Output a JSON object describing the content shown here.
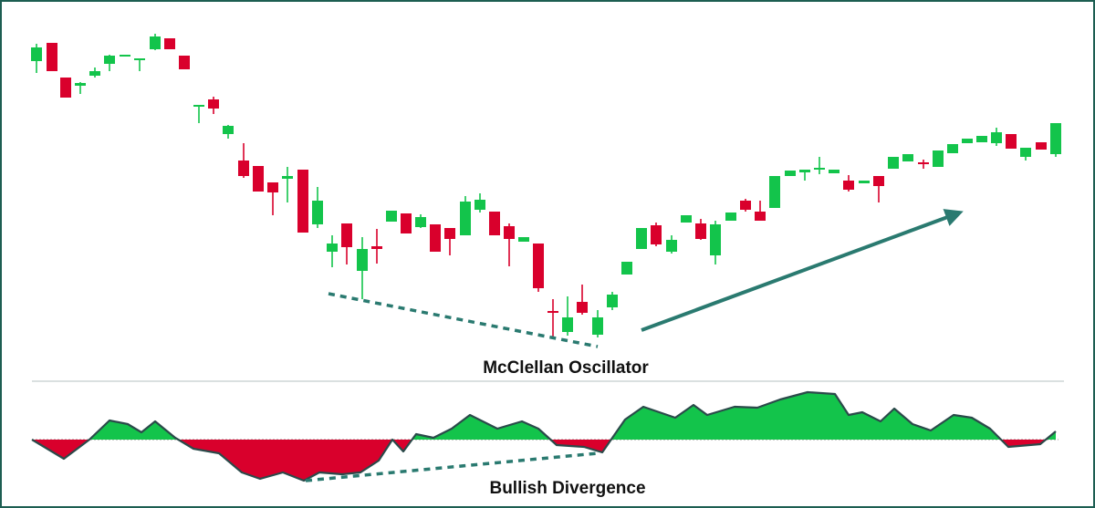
{
  "chart_data": [
    {
      "type": "candlestick",
      "x": [
        40,
        57,
        72,
        88,
        104,
        120,
        137,
        153,
        170,
        186,
        202,
        218,
        234,
        250,
        267,
        283,
        299,
        315,
        332,
        348,
        364,
        380,
        397,
        413,
        429,
        445,
        461,
        477,
        493,
        510,
        526,
        542,
        558,
        574,
        590,
        606,
        622,
        638,
        655,
        671,
        687,
        703,
        719,
        736,
        752,
        768,
        784,
        801,
        817,
        833,
        849,
        866,
        882,
        898,
        914,
        930,
        947,
        963,
        979,
        995,
        1012,
        1028,
        1044,
        1060,
        1076,
        1092,
        1108,
        1124,
        1141,
        1157
      ],
      "open": [
        333,
        353,
        315,
        306,
        317,
        330,
        338,
        334,
        346,
        358,
        339,
        283,
        291,
        253,
        224,
        218,
        200,
        204,
        214,
        154,
        124,
        155,
        103,
        130,
        157,
        166,
        151,
        154,
        150,
        142,
        170,
        168,
        152,
        135,
        133,
        59,
        36,
        69,
        33,
        63,
        99,
        127,
        153,
        124,
        156,
        155,
        120,
        158,
        180,
        168,
        172,
        207,
        211,
        214,
        210,
        202,
        199,
        207,
        215,
        223,
        222,
        217,
        232,
        243,
        244,
        243,
        253,
        228,
        244,
        231
      ],
      "high": [
        352,
        353,
        315,
        310,
        326,
        340,
        340,
        336,
        363,
        358,
        339,
        285,
        294,
        263,
        243,
        218,
        200,
        217,
        214,
        195,
        142,
        155,
        140,
        149,
        169,
        166,
        165,
        154,
        150,
        185,
        188,
        168,
        155,
        140,
        133,
        72,
        75,
        88,
        60,
        80,
        113,
        150,
        156,
        142,
        164,
        160,
        158,
        167,
        182,
        180,
        207,
        213,
        214,
        228,
        214,
        208,
        202,
        207,
        228,
        231,
        225,
        235,
        242,
        248,
        251,
        260,
        253,
        238,
        244,
        265
      ],
      "low": [
        320,
        322,
        293,
        297,
        315,
        322,
        338,
        322,
        345,
        346,
        324,
        265,
        275,
        248,
        205,
        190,
        164,
        178,
        145,
        150,
        107,
        110,
        72,
        111,
        157,
        144,
        150,
        124,
        120,
        142,
        167,
        142,
        108,
        135,
        80,
        30,
        32,
        55,
        30,
        60,
        99,
        127,
        130,
        122,
        156,
        137,
        110,
        158,
        168,
        158,
        172,
        207,
        202,
        209,
        210,
        190,
        199,
        178,
        215,
        223,
        215,
        217,
        232,
        243,
        244,
        240,
        237,
        224,
        236,
        228
      ],
      "close": [
        348,
        322,
        293,
        309,
        322,
        339,
        340,
        336,
        360,
        346,
        324,
        285,
        281,
        262,
        207,
        190,
        189,
        207,
        145,
        180,
        133,
        129,
        127,
        127,
        169,
        144,
        162,
        124,
        138,
        179,
        181,
        142,
        138,
        140,
        84,
        57,
        52,
        57,
        52,
        77,
        113,
        150,
        132,
        137,
        164,
        138,
        154,
        167,
        170,
        158,
        207,
        213,
        214,
        216,
        214,
        192,
        202,
        196,
        228,
        231,
        220,
        235,
        242,
        248,
        251,
        255,
        237,
        238,
        236,
        265
      ],
      "up_color": "#13c44b",
      "down_color": "#d9002c",
      "xlim": [
        0,
        1200
      ],
      "ylim": [
        20,
        370
      ]
    },
    {
      "type": "area",
      "title": "McClellan Oscillator",
      "annotation": "Bullish Divergence",
      "x": [
        35,
        70,
        98,
        120,
        140,
        155,
        170,
        192,
        212,
        240,
        265,
        285,
        310,
        333,
        350,
        375,
        395,
        415,
        430,
        442,
        456,
        475,
        495,
        515,
        545,
        572,
        590,
        610,
        640,
        660,
        685,
        705,
        740,
        760,
        775,
        805,
        830,
        855,
        885,
        915,
        930,
        945,
        965,
        980,
        1000,
        1020,
        1045,
        1065,
        1085,
        1105,
        1140,
        1157
      ],
      "values": [
        0,
        -21,
        0,
        21,
        17,
        8,
        20,
        2,
        -10,
        -15,
        -36,
        -43,
        -36,
        -45,
        -36,
        -38,
        -36,
        -23,
        0,
        -13,
        6,
        2,
        12,
        27,
        12,
        20,
        12,
        -6,
        -8,
        -14,
        22,
        36,
        24,
        38,
        27,
        36,
        35,
        44,
        52,
        50,
        27,
        30,
        20,
        34,
        17,
        10,
        27,
        24,
        12,
        -8,
        -5,
        9
      ],
      "positive_color": "#13c44b",
      "negative_color": "#d9002c",
      "line_color": "#2b4a4a",
      "xlim": [
        0,
        1200
      ],
      "ylim": [
        -60,
        70
      ]
    }
  ]
}
